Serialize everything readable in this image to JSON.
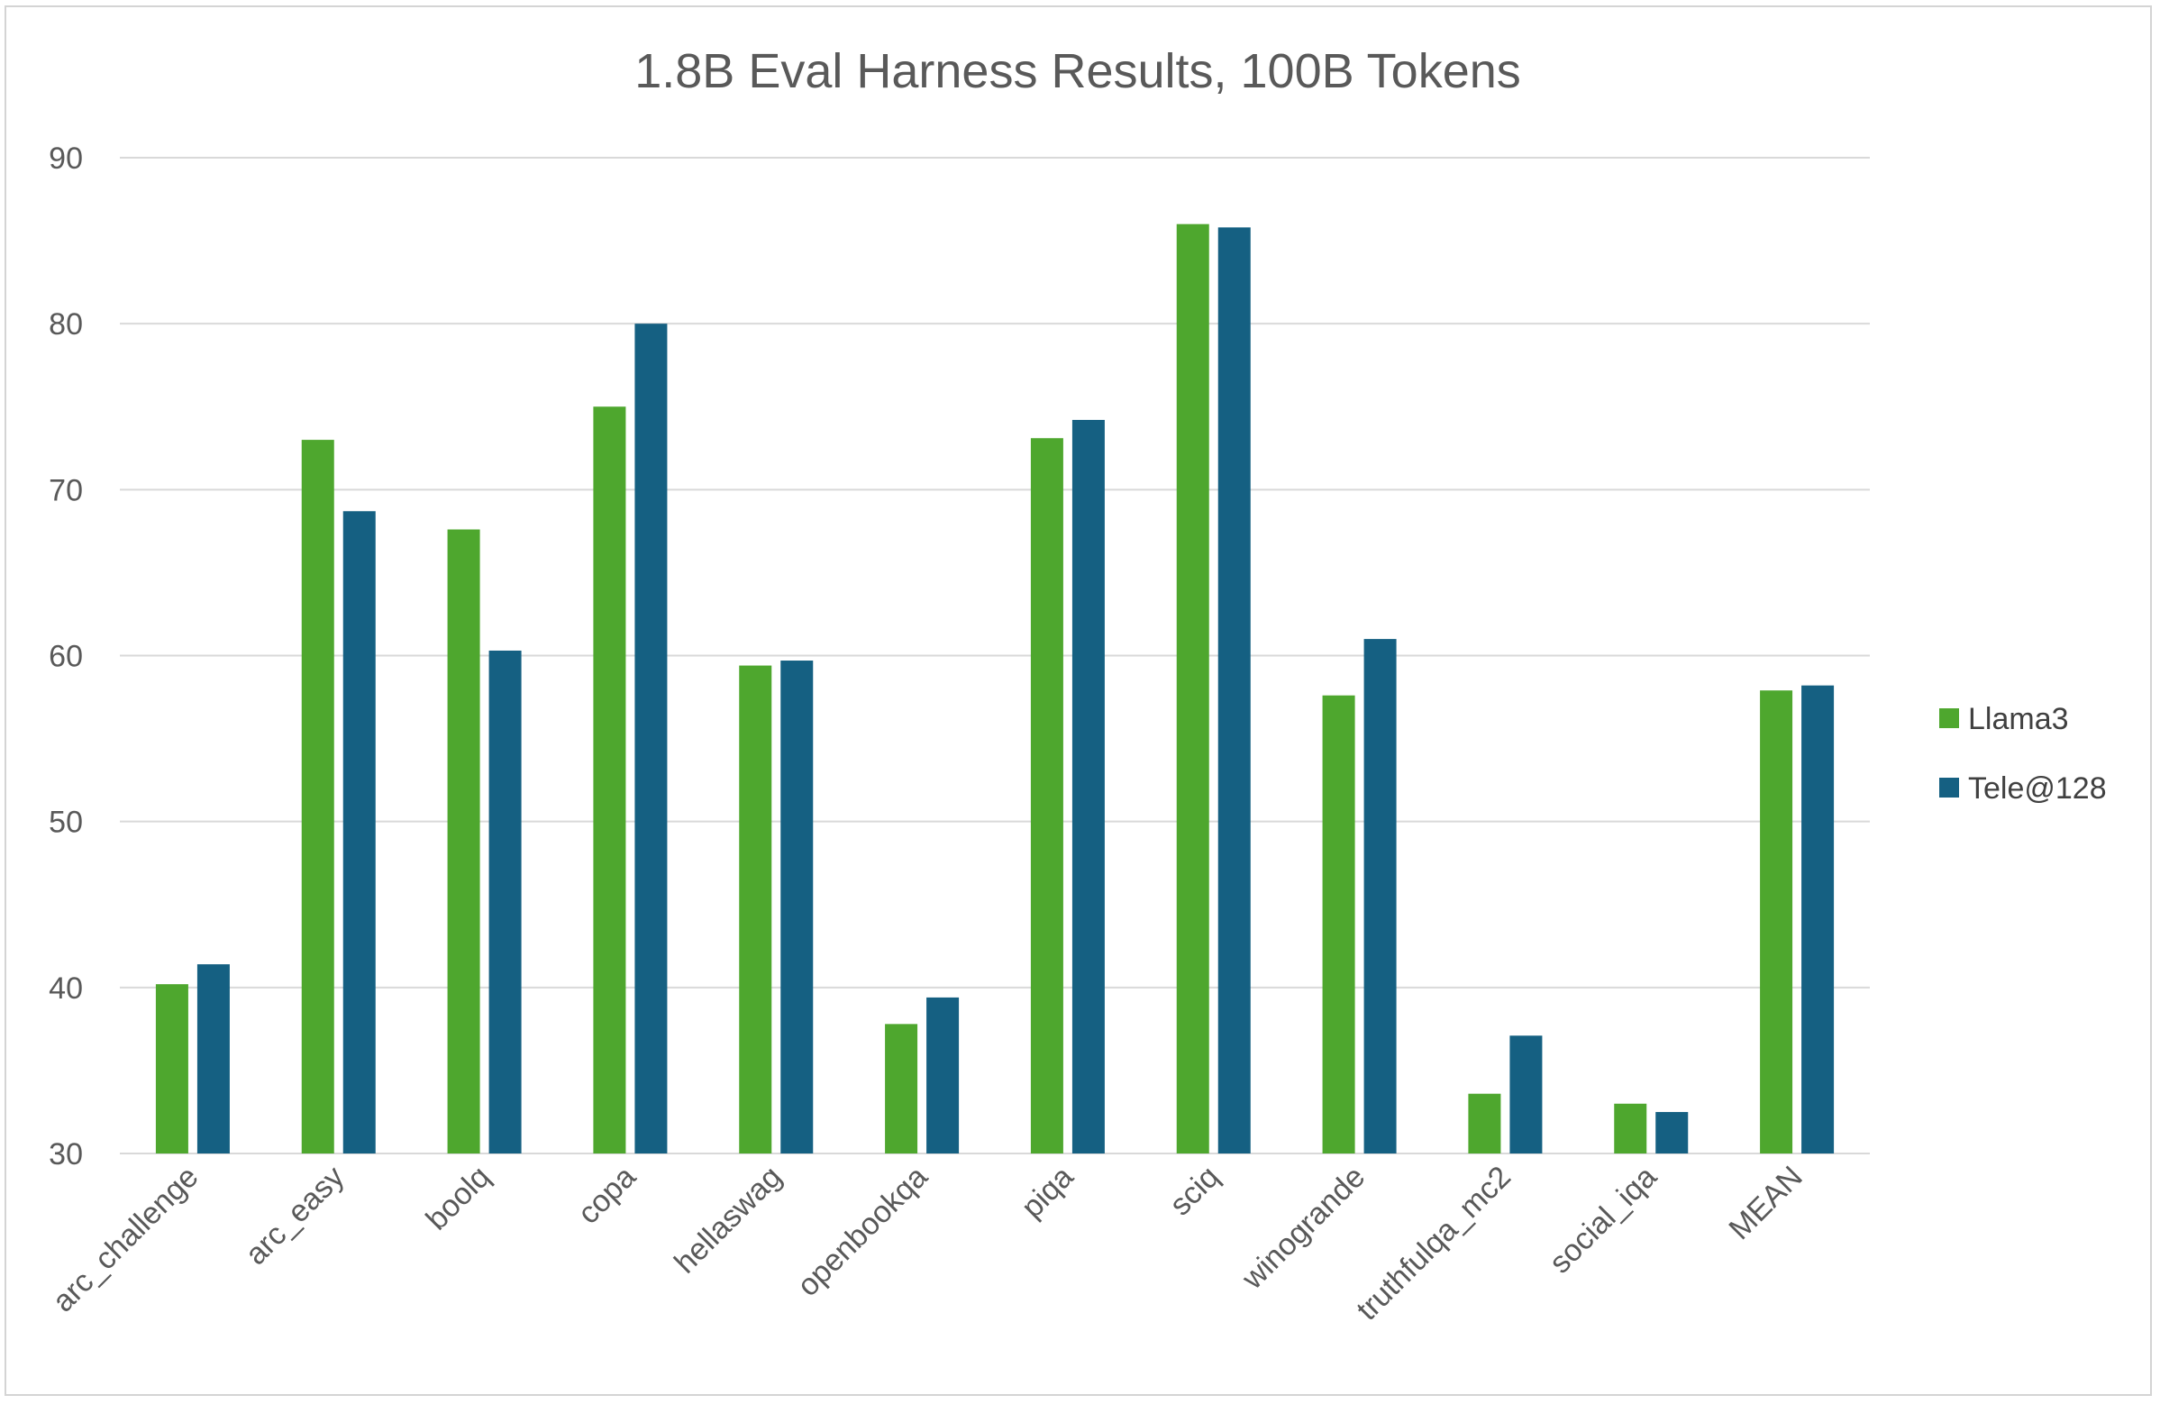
{
  "chart_data": {
    "type": "bar",
    "title": "1.8B Eval Harness Results, 100B Tokens",
    "xlabel": "",
    "ylabel": "",
    "ylim": [
      30,
      90
    ],
    "yticks": [
      30,
      40,
      50,
      60,
      70,
      80,
      90
    ],
    "grid": true,
    "legend_position": "right",
    "categories": [
      "arc_challenge",
      "arc_easy",
      "boolq",
      "copa",
      "hellaswag",
      "openbookqa",
      "piqa",
      "sciq",
      "winogrande",
      "truthfulqa_mc2",
      "social_iqa",
      "MEAN"
    ],
    "series": [
      {
        "name": "Llama3",
        "color": "#4EA72E",
        "values": [
          40.2,
          73.0,
          67.6,
          75.0,
          59.4,
          37.8,
          73.1,
          86.0,
          57.6,
          33.6,
          33.0,
          57.9
        ]
      },
      {
        "name": "Tele@128",
        "color": "#156082",
        "values": [
          41.4,
          68.7,
          60.3,
          80.0,
          59.7,
          39.4,
          74.2,
          85.8,
          61.0,
          37.1,
          32.5,
          58.2
        ]
      }
    ]
  }
}
